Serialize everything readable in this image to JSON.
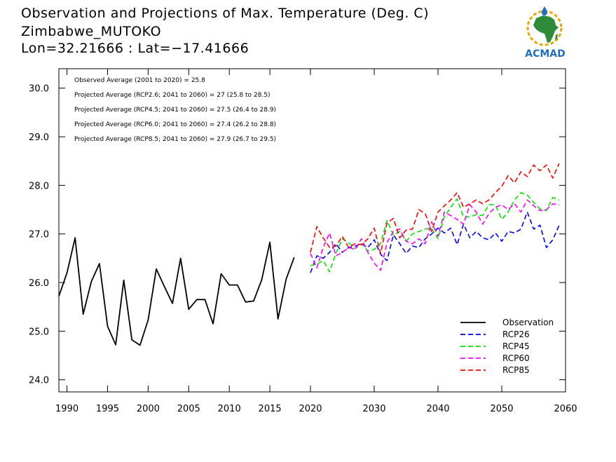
{
  "title": {
    "line1": "Observation and Projections of Max. Temperature (Deg. C)",
    "line2": "Zimbabwe_MUTOKO",
    "line3": "Lon=32.21666 : Lat=−17.41666"
  },
  "logo": {
    "text": "ACMAD",
    "colors": {
      "africa": "#2e8b3a",
      "ring": "#e8a800",
      "text": "#1e6fc0",
      "drop": "#1e6fc0"
    }
  },
  "notes": [
    "Observed Average (2001 to 2020) = 25.8",
    "Projected Average (RCP2.6; 2041 to 2060) = 27 (25.8 to 28.5)",
    "Projected Average (RCP4.5; 2041 to 2060) = 27.5 (26.4 to 28.9)",
    "Projected Average (RCP6.0; 2041 to 2060) = 27.4 (26.2 to 28.8)",
    "Projected Average (RCP8.5; 2041 to 2060) = 27.9 (26.7 to 29.5)"
  ],
  "chart_data": {
    "type": "line",
    "xlim": [
      1989,
      2060
    ],
    "ylim": [
      23.75,
      30.4
    ],
    "yticks": [
      24.0,
      25.0,
      26.0,
      27.0,
      28.0,
      29.0,
      30.0
    ],
    "ytick_labels": [
      "24.0",
      "25.0",
      "26.0",
      "27.0",
      "28.0",
      "29.0",
      "30.0"
    ],
    "xticks_a": [
      1990,
      1995,
      2000,
      2005,
      2010,
      2015,
      2020
    ],
    "xticks_a_labels": [
      "1990",
      "1995",
      "2000",
      "2005",
      "2010",
      "2015",
      "2020"
    ],
    "xticks_b": [
      2030,
      2040,
      2050,
      2060
    ],
    "xticks_b_labels": [
      "2030",
      "2040",
      "2050",
      "2060"
    ],
    "grid": false,
    "legend_position": "bottom-right",
    "series": [
      {
        "name": "Observation",
        "color": "#000000",
        "dashed": false,
        "x_start": 1989,
        "values": [
          25.72,
          26.2,
          26.92,
          25.35,
          26.02,
          26.39,
          25.1,
          24.72,
          26.05,
          24.82,
          24.71,
          25.23,
          26.28,
          25.92,
          25.57,
          26.5,
          25.45,
          25.65,
          25.65,
          25.15,
          26.18,
          25.95,
          25.95,
          25.6,
          25.62,
          26.06,
          26.83,
          25.25,
          26.07,
          26.52
        ]
      },
      {
        "name": "RCP26",
        "color": "#0000ff",
        "dashed": true,
        "x_start": 2020,
        "values": [
          26.2,
          26.55,
          26.5,
          26.62,
          26.8,
          26.62,
          26.72,
          26.75,
          26.8,
          26.72,
          26.88,
          26.58,
          26.45,
          26.98,
          26.8,
          26.6,
          26.75,
          26.72,
          26.9,
          27.0,
          27.12,
          27.02,
          27.12,
          26.78,
          27.2,
          26.92,
          27.05,
          26.92,
          26.88,
          27.02,
          26.85,
          27.05,
          27.02,
          27.1,
          27.45,
          27.1,
          27.18,
          26.72,
          26.88,
          27.18
        ]
      },
      {
        "name": "RCP45",
        "color": "#00e600",
        "dashed": true,
        "x_start": 2020,
        "values": [
          26.35,
          26.38,
          26.45,
          26.22,
          26.6,
          26.9,
          26.82,
          26.7,
          26.8,
          26.65,
          26.68,
          26.8,
          27.28,
          26.98,
          27.05,
          26.85,
          27.0,
          27.05,
          27.1,
          27.12,
          26.9,
          27.35,
          27.55,
          27.72,
          27.35,
          27.35,
          27.4,
          27.38,
          27.6,
          27.6,
          27.3,
          27.45,
          27.7,
          27.85,
          27.8,
          27.65,
          27.52,
          27.48,
          27.75,
          27.7
        ]
      },
      {
        "name": "RCP60",
        "color": "#ff00ff",
        "dashed": true,
        "x_start": 2020,
        "values": [
          26.6,
          26.3,
          26.72,
          27.02,
          26.55,
          26.62,
          26.72,
          26.68,
          26.9,
          26.62,
          26.4,
          26.25,
          26.82,
          27.05,
          27.1,
          26.85,
          26.8,
          26.9,
          26.8,
          27.25,
          26.95,
          27.45,
          27.38,
          27.3,
          27.2,
          27.6,
          27.45,
          27.2,
          27.42,
          27.55,
          27.6,
          27.5,
          27.62,
          27.45,
          27.7,
          27.58,
          27.48,
          27.5,
          27.62,
          27.6
        ]
      },
      {
        "name": "RCP85",
        "color": "#ff0000",
        "dashed": true,
        "x_start": 2020,
        "values": [
          26.62,
          27.15,
          26.92,
          26.72,
          26.75,
          26.95,
          26.72,
          26.8,
          26.78,
          26.9,
          27.12,
          26.6,
          27.22,
          27.32,
          26.92,
          27.08,
          27.1,
          27.5,
          27.42,
          27.05,
          27.45,
          27.58,
          27.7,
          27.85,
          27.55,
          27.62,
          27.7,
          27.62,
          27.7,
          27.85,
          27.98,
          28.2,
          28.05,
          28.28,
          28.18,
          28.42,
          28.3,
          28.42,
          28.15,
          28.45
        ]
      }
    ]
  }
}
